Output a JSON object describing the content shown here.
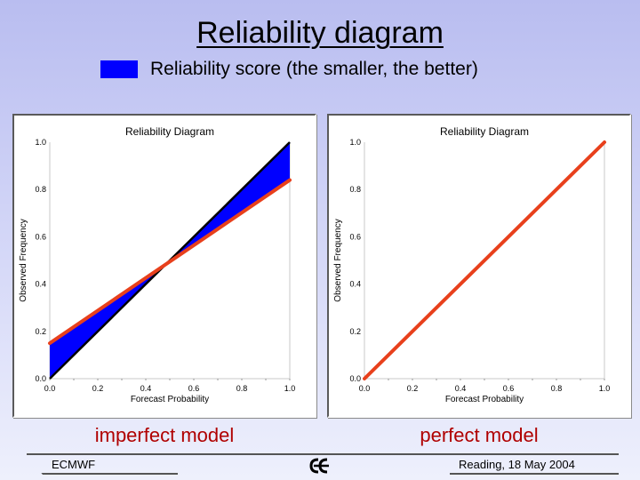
{
  "slide": {
    "title": "Reliability diagram",
    "legend_label": "Reliability score (the smaller, the better)",
    "legend_color": "#0000ff",
    "caption_left": "imperfect model",
    "caption_right": "perfect model",
    "footer_left": "ECMWF",
    "footer_right": "Reading, 18 May 2004",
    "logo_icon": "ecmwf-logo-icon"
  },
  "chart_data": [
    {
      "type": "line",
      "title": "Reliability Diagram",
      "xlabel": "Forecast Probability",
      "ylabel": "Observed Frequency",
      "xlim": [
        0,
        1
      ],
      "ylim": [
        0,
        1
      ],
      "x_ticks": [
        "0.0",
        "0.2",
        "0.4",
        "0.6",
        "0.8",
        "1.0"
      ],
      "y_ticks": [
        "0.0",
        "0.2",
        "0.4",
        "0.6",
        "0.8",
        "1.0"
      ],
      "grid": false,
      "diagonal": {
        "x": [
          0,
          1
        ],
        "y": [
          0,
          1
        ],
        "color": "#000000"
      },
      "series": [
        {
          "x": [
            0,
            1
          ],
          "y": [
            0.15,
            0.84
          ],
          "color": "#e8401c"
        }
      ],
      "reliability_fill": "#0000ff"
    },
    {
      "type": "line",
      "title": "Reliability Diagram",
      "xlabel": "Forecast Probability",
      "ylabel": "Observed Frequency",
      "xlim": [
        0,
        1
      ],
      "ylim": [
        0,
        1
      ],
      "x_ticks": [
        "0.0",
        "0.2",
        "0.4",
        "0.6",
        "0.8",
        "1.0"
      ],
      "y_ticks": [
        "0.0",
        "0.2",
        "0.4",
        "0.6",
        "0.8",
        "1.0"
      ],
      "grid": false,
      "diagonal": {
        "x": [
          0,
          1
        ],
        "y": [
          0,
          1
        ],
        "color": "#000000"
      },
      "series": [
        {
          "x": [
            0,
            1
          ],
          "y": [
            0,
            1
          ],
          "color": "#e8401c"
        }
      ],
      "reliability_fill": "#0000ff"
    }
  ]
}
